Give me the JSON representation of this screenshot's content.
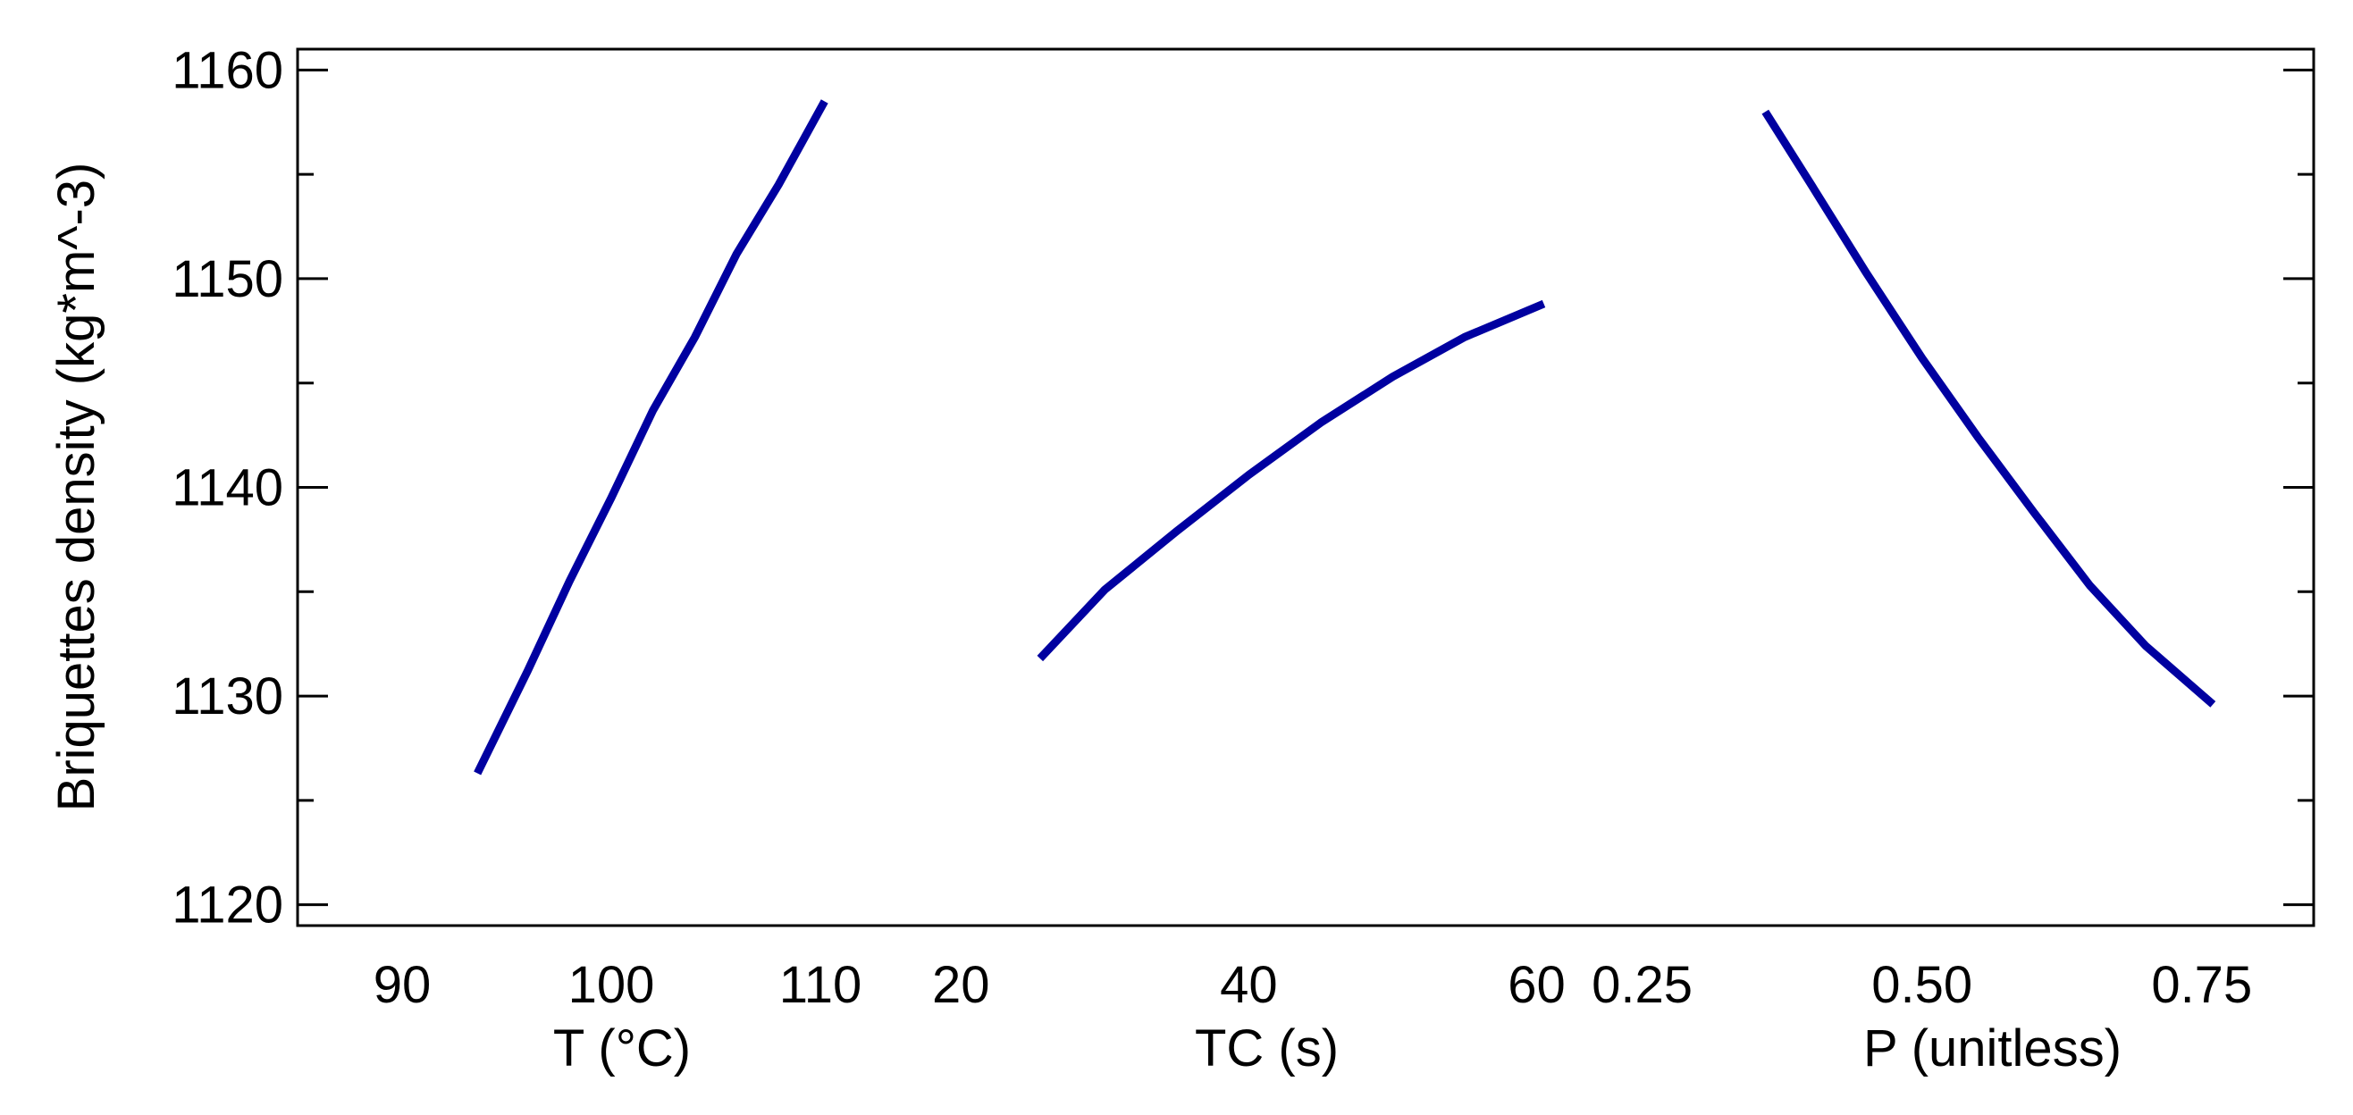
{
  "chart_data": {
    "type": "line",
    "ylabel": "Briquettes density (kg*m^-3)",
    "ylim": [
      1119,
      1161
    ],
    "y_ticks": [
      "1120",
      "1130",
      "1140",
      "1150",
      "1160"
    ],
    "y_tick_values": [
      1120,
      1130,
      1140,
      1150,
      1160
    ],
    "grid": false,
    "line_color": "#0000a0",
    "panels": [
      {
        "xlabel": "T (°C)",
        "xlim": [
          85,
          115
        ],
        "x_ticks": [
          "90",
          "100",
          "110"
        ],
        "x_tick_values": [
          90,
          100,
          110
        ],
        "series": [
          {
            "x": [
              93.6,
              96,
              98,
              100,
              102,
              104,
              106,
              108,
              110.2
            ],
            "y": [
              1126.3,
              1131.2,
              1135.5,
              1139.5,
              1143.7,
              1147.2,
              1151.2,
              1154.5,
              1158.5
            ]
          }
        ]
      },
      {
        "xlabel": "TC (s)",
        "xlim": [
          17.5,
          65
        ],
        "x_ticks": [
          "20",
          "40",
          "60"
        ],
        "x_tick_values": [
          20,
          40,
          60
        ],
        "series": [
          {
            "x": [
              25.5,
              30,
              35,
              40,
              45,
              50,
              55,
              60.5
            ],
            "y": [
              1131.8,
              1135.1,
              1137.9,
              1140.6,
              1143.1,
              1145.3,
              1147.2,
              1148.8
            ]
          }
        ]
      },
      {
        "xlabel": "P (unitless)",
        "xlim": [
          0.22,
          0.85
        ],
        "x_ticks": [
          "0.25",
          "0.50",
          "0.75"
        ],
        "x_tick_values": [
          0.25,
          0.5,
          0.75
        ],
        "series": [
          {
            "x": [
              0.36,
              0.4,
              0.45,
              0.5,
              0.55,
              0.6,
              0.65,
              0.7,
              0.76
            ],
            "y": [
              1158.0,
              1154.6,
              1150.3,
              1146.2,
              1142.4,
              1138.8,
              1135.3,
              1132.4,
              1129.6
            ]
          }
        ]
      }
    ]
  }
}
